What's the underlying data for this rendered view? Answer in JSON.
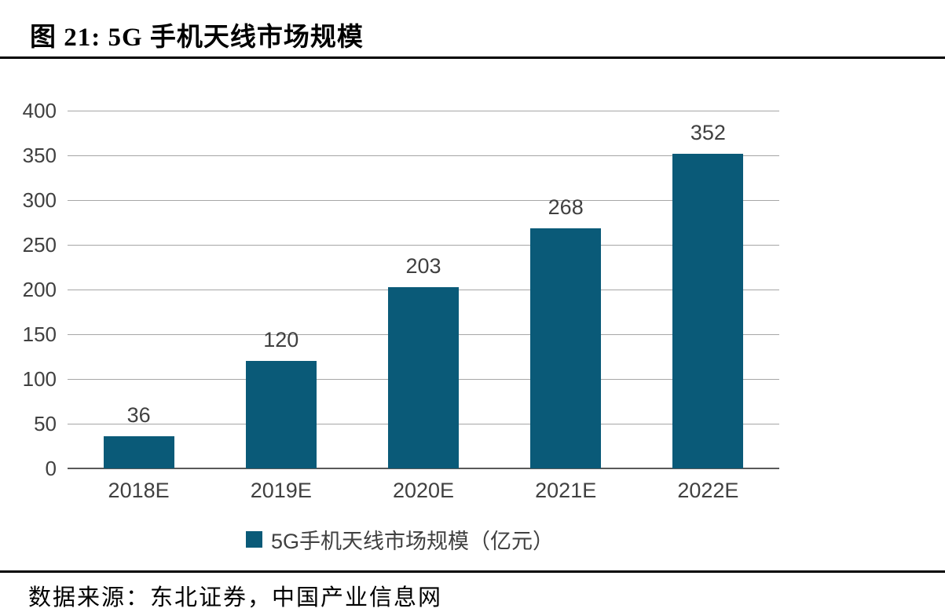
{
  "figure": {
    "title": "图 21: 5G 手机天线市场规模",
    "source": "数据来源：东北证券，中国产业信息网"
  },
  "chart_data": {
    "type": "bar",
    "title": "5G手机天线市场规模",
    "categories": [
      "2018E",
      "2019E",
      "2020E",
      "2021E",
      "2022E"
    ],
    "values": [
      36,
      120,
      203,
      268,
      352
    ],
    "value_labels": [
      "36",
      "120",
      "203",
      "268",
      "352"
    ],
    "legend": "5G手机天线市场规模（亿元）",
    "legend_position": "bottom",
    "xlabel": "",
    "ylabel": "",
    "ylim": [
      0,
      400
    ],
    "yticks": [
      0,
      50,
      100,
      150,
      200,
      250,
      300,
      350,
      400
    ],
    "grid": true,
    "unit": "亿元"
  },
  "colors": {
    "bar": "#0A5A78",
    "gridline": "#A6A6A6",
    "axis": "#595959",
    "tick_label": "#404040",
    "rule": "#000000"
  }
}
